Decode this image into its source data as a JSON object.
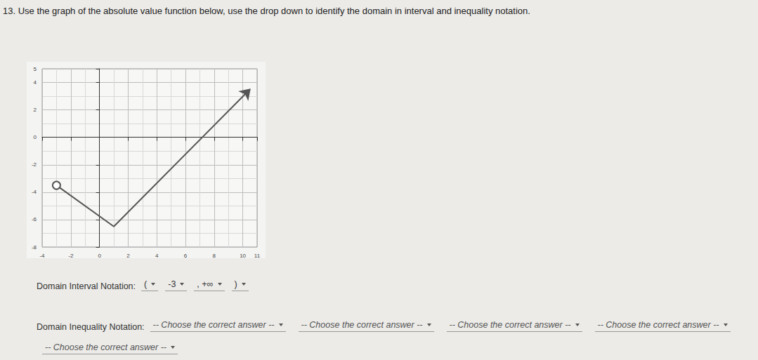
{
  "question": "13. Use the graph of the absolute value function below, use the drop down to identify the domain in interval and inequality notation.",
  "chart_data": {
    "type": "line",
    "x": [
      -3,
      1,
      10.5
    ],
    "values": [
      -3.5,
      -6.5,
      3.5
    ],
    "color": "#555555",
    "xlim": [
      -4,
      11
    ],
    "ylim": [
      -8,
      5
    ],
    "xticks": [
      -4,
      -2,
      0,
      2,
      4,
      6,
      8,
      10
    ],
    "yticks": [
      -8,
      -6,
      -4,
      -2,
      0,
      2,
      4
    ],
    "grid": true
  },
  "form": {
    "interval": {
      "label": "Domain Interval Notation:",
      "selects": [
        "(",
        "-3",
        ", +∞",
        ")"
      ]
    },
    "inequality": {
      "label": "Domain Inequality Notation:",
      "selects": [
        "-- Choose the correct answer --",
        "-- Choose the correct answer --",
        "-- Choose the correct answer --",
        "-- Choose the correct answer --",
        "-- Choose the correct answer --"
      ]
    }
  }
}
